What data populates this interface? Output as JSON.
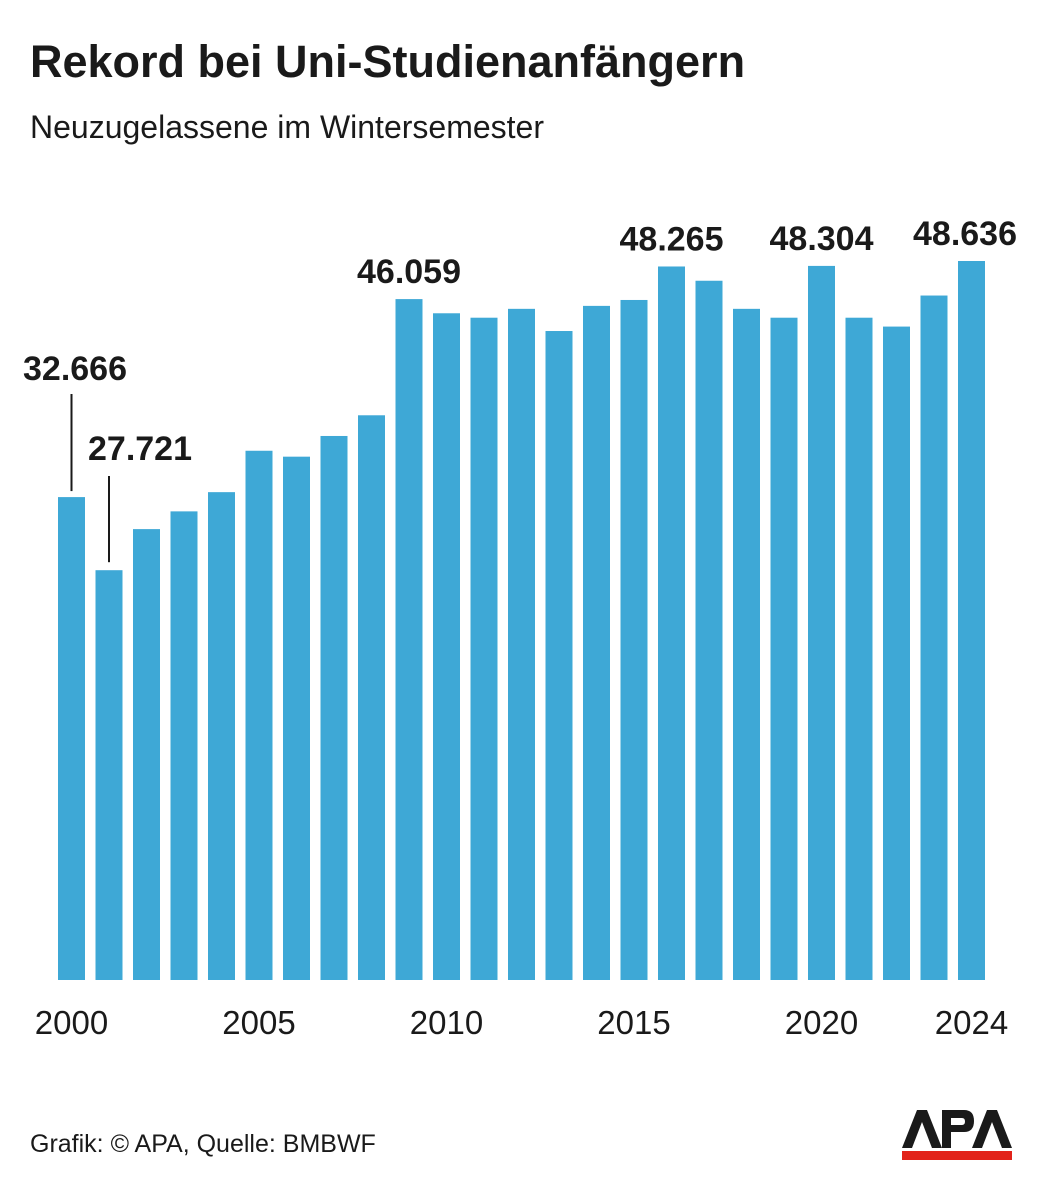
{
  "chart_data": {
    "type": "bar",
    "title": "Rekord bei Uni-Studienanfängern",
    "subtitle": "Neuzugelassene im Wintersemester",
    "categories": [
      2000,
      2001,
      2002,
      2003,
      2004,
      2005,
      2006,
      2007,
      2008,
      2009,
      2010,
      2011,
      2012,
      2013,
      2014,
      2015,
      2016,
      2017,
      2018,
      2019,
      2020,
      2021,
      2022,
      2023,
      2024
    ],
    "values": [
      32666,
      27721,
      30500,
      31700,
      33000,
      35800,
      35400,
      36800,
      38200,
      46059,
      45100,
      44800,
      45400,
      43900,
      45600,
      46000,
      48265,
      47300,
      45400,
      44800,
      48304,
      44800,
      44200,
      46300,
      48636
    ],
    "data_labels": [
      {
        "index": 0,
        "text": "32.666"
      },
      {
        "index": 1,
        "text": "27.721"
      },
      {
        "index": 9,
        "text": "46.059"
      },
      {
        "index": 16,
        "text": "48.265"
      },
      {
        "index": 20,
        "text": "48.304"
      },
      {
        "index": 24,
        "text": "48.636"
      }
    ],
    "x_ticks": [
      {
        "index": 0,
        "text": "2000"
      },
      {
        "index": 5,
        "text": "2005"
      },
      {
        "index": 10,
        "text": "2010"
      },
      {
        "index": 15,
        "text": "2015"
      },
      {
        "index": 20,
        "text": "2020"
      },
      {
        "index": 24,
        "text": "2024"
      }
    ],
    "ylim": [
      0,
      65000
    ],
    "grid": false,
    "legend": "none",
    "bar_color": "#3ea8d6"
  },
  "footer": {
    "source": "Grafik: © APA, Quelle: BMBWF"
  },
  "logo": {
    "text": "APA",
    "color": "#1a1a1a",
    "accent_color": "#e2231a"
  }
}
